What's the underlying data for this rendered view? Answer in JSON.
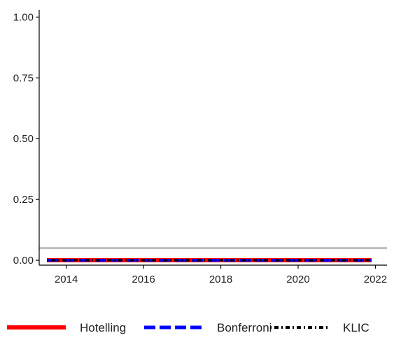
{
  "chart_data": {
    "type": "line",
    "title": "",
    "xlabel": "",
    "ylabel": "",
    "xlim": [
      2013.3,
      2022.3
    ],
    "ylim": [
      -0.02,
      1.03
    ],
    "x_ticks": [
      {
        "value": 2014,
        "label": "2014"
      },
      {
        "value": 2016,
        "label": "2016"
      },
      {
        "value": 2018,
        "label": "2018"
      },
      {
        "value": 2020,
        "label": "2020"
      },
      {
        "value": 2022,
        "label": "2022"
      }
    ],
    "y_ticks": [
      {
        "value": 0.0,
        "label": "0.00"
      },
      {
        "value": 0.25,
        "label": "0.25"
      },
      {
        "value": 0.5,
        "label": "0.50"
      },
      {
        "value": 0.75,
        "label": "0.75"
      },
      {
        "value": 1.0,
        "label": "1.00"
      }
    ],
    "reference_line": {
      "y": 0.05,
      "color": "#bebebe"
    },
    "grid": false,
    "legend_position": "bottom",
    "series": [
      {
        "name": "Hotelling",
        "color": "#ff0000",
        "style": "solid",
        "x": [
          2013.5,
          2021.9
        ],
        "y": [
          0.0,
          0.0
        ]
      },
      {
        "name": "Bonferroni",
        "color": "#0000ff",
        "style": "dashed",
        "x": [
          2013.5,
          2021.9
        ],
        "y": [
          0.0,
          0.0
        ]
      },
      {
        "name": "KLIC",
        "color": "#000000",
        "style": "dotdash",
        "x": [
          2013.5,
          2021.9
        ],
        "y": [
          0.0,
          0.0
        ]
      }
    ]
  }
}
